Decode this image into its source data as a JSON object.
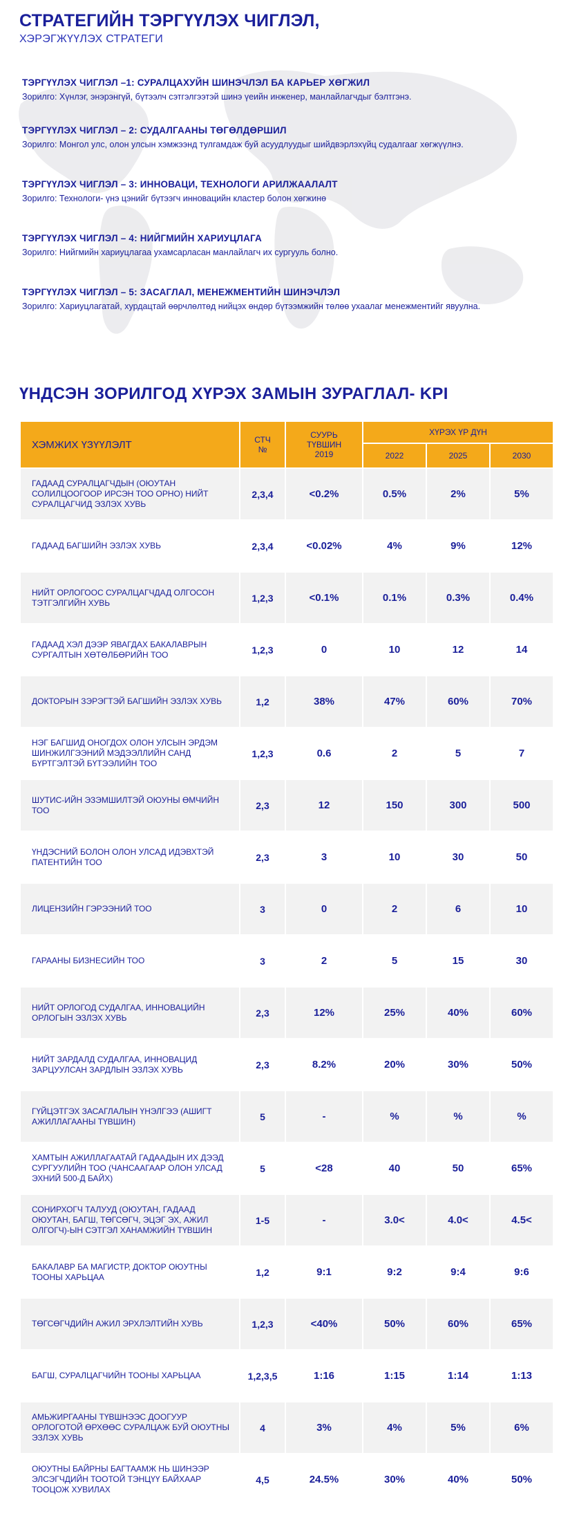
{
  "header": {
    "title": "СТРАТЕГИЙН ТЭРГҮҮЛЭХ ЧИГЛЭЛ,",
    "subtitle": "ХЭРЭГЖҮҮЛЭХ СТРАТЕГИ"
  },
  "directions": [
    {
      "title": "ТЭРГҮҮЛЭХ ЧИГЛЭЛ –1: СУРАЛЦАХУЙН ШИНЭЧЛЭЛ БА КАРЬЕР ХӨГЖИЛ",
      "goal": "Зорилго: Хүнлэг, энэрэнгүй, бүтээлч сэтгэлгээтэй шинэ үеийн инженер, манлайлагчдыг бэлтгэнэ."
    },
    {
      "title": "ТЭРГҮҮЛЭХ ЧИГЛЭЛ – 2: СУДАЛГААНЫ ТӨГӨЛДӨРШИЛ",
      "goal": "Зорилго: Монгол улс, олон улсын хэмжээнд тулгамдаж буй асуудлуудыг шийдвэрлэхүйц судалгааг хөгжүүлнэ."
    },
    {
      "title": "ТЭРГҮҮЛЭХ ЧИГЛЭЛ – 3: ИННОВАЦИ, ТЕХНОЛОГИ АРИЛЖААЛАЛТ",
      "goal": "Зорилго: Технологи- үнэ цэнийг бүтээгч инновацийн кластер болон хөгжинө"
    },
    {
      "title": "ТЭРГҮҮЛЭХ ЧИГЛЭЛ – 4: НИЙГМИЙН ХАРИУЦЛАГА",
      "goal": "Зорилго: Нийгмийн хариуцлагаа ухамсарласан манлайлагч их сургууль болно."
    },
    {
      "title": "ТЭРГҮҮЛЭХ ЧИГЛЭЛ – 5: ЗАСАГЛАЛ, МЕНЕЖМЕНТИЙН ШИНЭЧЛЭЛ",
      "goal": "Зорилго: Хариуцлагатай, хурдацтай өөрчлөлтөд нийцэх өндөр бүтээмжийн төлөө ухаалаг менежментийг явуулна."
    }
  ],
  "kpi": {
    "title": "ҮНДСЭН ЗОРИЛГОД ХҮРЭХ ЗАМЫН ЗУРАГЛАЛ- KPI",
    "headers": {
      "name": "ХЭМЖИХ ҮЗҮҮЛЭЛТ",
      "stch_line1": "СТЧ",
      "stch_line2": "№",
      "base_line1": "СУУРЬ",
      "base_line2": "ТҮВШИН",
      "base_line3": "2019",
      "result": "ХҮРЭХ ҮР ДҮН",
      "y2022": "2022",
      "y2025": "2025",
      "y2030": "2030"
    },
    "rows": [
      {
        "name": "ГАДААД СУРАЛЦАГЧДЫН (ОЮУТАН СОЛИЛЦООГООР ИРСЭН ТОО ОРНО) НИЙТ СУРАЛЦАГЧИД ЭЗЛЭХ ХУВЬ",
        "stch": "2,3,4",
        "base": "<0.2%",
        "v2022": "0.5%",
        "v2025": "2%",
        "v2030": "5%"
      },
      {
        "name": "ГАДААД БАГШИЙН ЭЗЛЭХ ХУВЬ",
        "stch": "2,3,4",
        "base": "<0.02%",
        "v2022": "4%",
        "v2025": "9%",
        "v2030": "12%"
      },
      {
        "name": "НИЙТ ОРЛОГООС СУРАЛЦАГЧДАД ОЛГОСОН ТЭТГЭЛГИЙН ХУВЬ",
        "stch": "1,2,3",
        "base": "<0.1%",
        "v2022": "0.1%",
        "v2025": "0.3%",
        "v2030": "0.4%"
      },
      {
        "name": "ГАДААД ХЭЛ ДЭЭР ЯВАГДАХ БАКАЛАВРЫН СУРГАЛТЫН ХӨТӨЛБӨРИЙН ТОО",
        "stch": "1,2,3",
        "base": "0",
        "v2022": "10",
        "v2025": "12",
        "v2030": "14"
      },
      {
        "name": "ДОКТОРЫН ЗЭРЭГТЭЙ БАГШИЙН ЭЗЛЭХ ХУВЬ",
        "stch": "1,2",
        "base": "38%",
        "v2022": "47%",
        "v2025": "60%",
        "v2030": "70%"
      },
      {
        "name": "НЭГ БАГШИД ОНОГДОХ ОЛОН УЛСЫН ЭРДЭМ ШИНЖИЛГЭЭНИЙ МЭДЭЭЛЛИЙН САНД БҮРТГЭЛТЭЙ БҮТЭЭЛИЙН ТОО",
        "stch": "1,2,3",
        "base": "0.6",
        "v2022": "2",
        "v2025": "5",
        "v2030": "7"
      },
      {
        "name": "ШУТИС-ИЙН ЭЗЭМШИЛТЭЙ ОЮУНЫ ӨМЧИЙН ТОО",
        "stch": "2,3",
        "base": "12",
        "v2022": "150",
        "v2025": "300",
        "v2030": "500"
      },
      {
        "name": "ҮНДЭСНИЙ БОЛОН ОЛОН УЛСАД ИДЭВХТЭЙ ПАТЕНТИЙН ТОО",
        "stch": "2,3",
        "base": "3",
        "v2022": "10",
        "v2025": "30",
        "v2030": "50"
      },
      {
        "name": "ЛИЦЕНЗИЙН ГЭРЭЭНИЙ ТОО",
        "stch": "3",
        "base": "0",
        "v2022": "2",
        "v2025": "6",
        "v2030": "10"
      },
      {
        "name": "ГАРААНЫ БИЗНЕСИЙН ТОО",
        "stch": "3",
        "base": "2",
        "v2022": "5",
        "v2025": "15",
        "v2030": "30"
      },
      {
        "name": "НИЙТ ОРЛОГОД СУДАЛГАА, ИННОВАЦИЙН ОРЛОГЫН ЭЗЛЭХ ХУВЬ",
        "stch": "2,3",
        "base": "12%",
        "v2022": "25%",
        "v2025": "40%",
        "v2030": "60%"
      },
      {
        "name": "НИЙТ ЗАРДАЛД СУДАЛГАА, ИННОВАЦИД ЗАРЦУУЛСАН ЗАРДЛЫН ЭЗЛЭХ ХУВЬ",
        "stch": "2,3",
        "base": "8.2%",
        "v2022": "20%",
        "v2025": "30%",
        "v2030": "50%"
      },
      {
        "name": "ГҮЙЦЭТГЭХ ЗАСАГЛАЛЫН ҮНЭЛГЭЭ (АШИГТ АЖИЛЛАГААНЫ ТҮВШИН)",
        "stch": "5",
        "base": "-",
        "v2022": "%",
        "v2025": "%",
        "v2030": "%"
      },
      {
        "name": "ХАМТЫН АЖИЛЛАГААТАЙ ГАДААДЫН ИХ ДЭЭД СУРГУУЛИЙН ТОО (ЧАНСААГААР ОЛОН УЛСАД ЭХНИЙ 500-Д БАЙХ)",
        "stch": "5",
        "base": "<28",
        "v2022": "40",
        "v2025": "50",
        "v2030": "65%"
      },
      {
        "name": "СОНИРХОГЧ ТАЛУУД (ОЮУТАН, ГАДААД ОЮУТАН, БАГШ, ТӨГСӨГЧ, ЭЦЭГ ЭХ, АЖИЛ ОЛГОГЧ)-ЫН СЭТГЭЛ ХАНАМЖИЙН ТҮВШИН",
        "stch": "1-5",
        "base": "-",
        "v2022": "3.0<",
        "v2025": "4.0<",
        "v2030": "4.5<"
      },
      {
        "name": "БАКАЛАВР БА МАГИСТР, ДОКТОР ОЮУТНЫ ТООНЫ ХАРЬЦАА",
        "stch": "1,2",
        "base": "9:1",
        "v2022": "9:2",
        "v2025": "9:4",
        "v2030": "9:6"
      },
      {
        "name": "ТӨГСӨГЧДИЙН АЖИЛ ЭРХЛЭЛТИЙН ХУВЬ",
        "stch": "1,2,3",
        "base": "<40%",
        "v2022": "50%",
        "v2025": "60%",
        "v2030": "65%"
      },
      {
        "name": "БАГШ, СУРАЛЦАГЧИЙН ТООНЫ ХАРЬЦАА",
        "stch": "1,2,3,5",
        "base": "1:16",
        "v2022": "1:15",
        "v2025": "1:14",
        "v2030": "1:13"
      },
      {
        "name": "АМЬЖИРГААНЫ ТҮВШНЭЭС ДООГУУР ОРЛОГОТОЙ ӨРХӨӨС СУРАЛЦАЖ БУЙ ОЮУТНЫ ЭЗЛЭХ ХУВЬ",
        "stch": "4",
        "base": "3%",
        "v2022": "4%",
        "v2025": "5%",
        "v2030": "6%"
      },
      {
        "name": "ОЮУТНЫ БАЙРНЫ БАГТААМЖ НЬ ШИНЭЭР ЭЛСЭГЧДИЙН ТООТОЙ ТЭНЦҮҮ БАЙХААР ТООЦОЖ ХУВИЛАХ",
        "stch": "4,5",
        "base": "24.5%",
        "v2022": "30%",
        "v2025": "40%",
        "v2030": "50%"
      }
    ]
  },
  "colors": {
    "primary_text": "#1a1f9a",
    "header_fill": "#f4a91a",
    "row_alt_fill": "#f2f2f2"
  }
}
